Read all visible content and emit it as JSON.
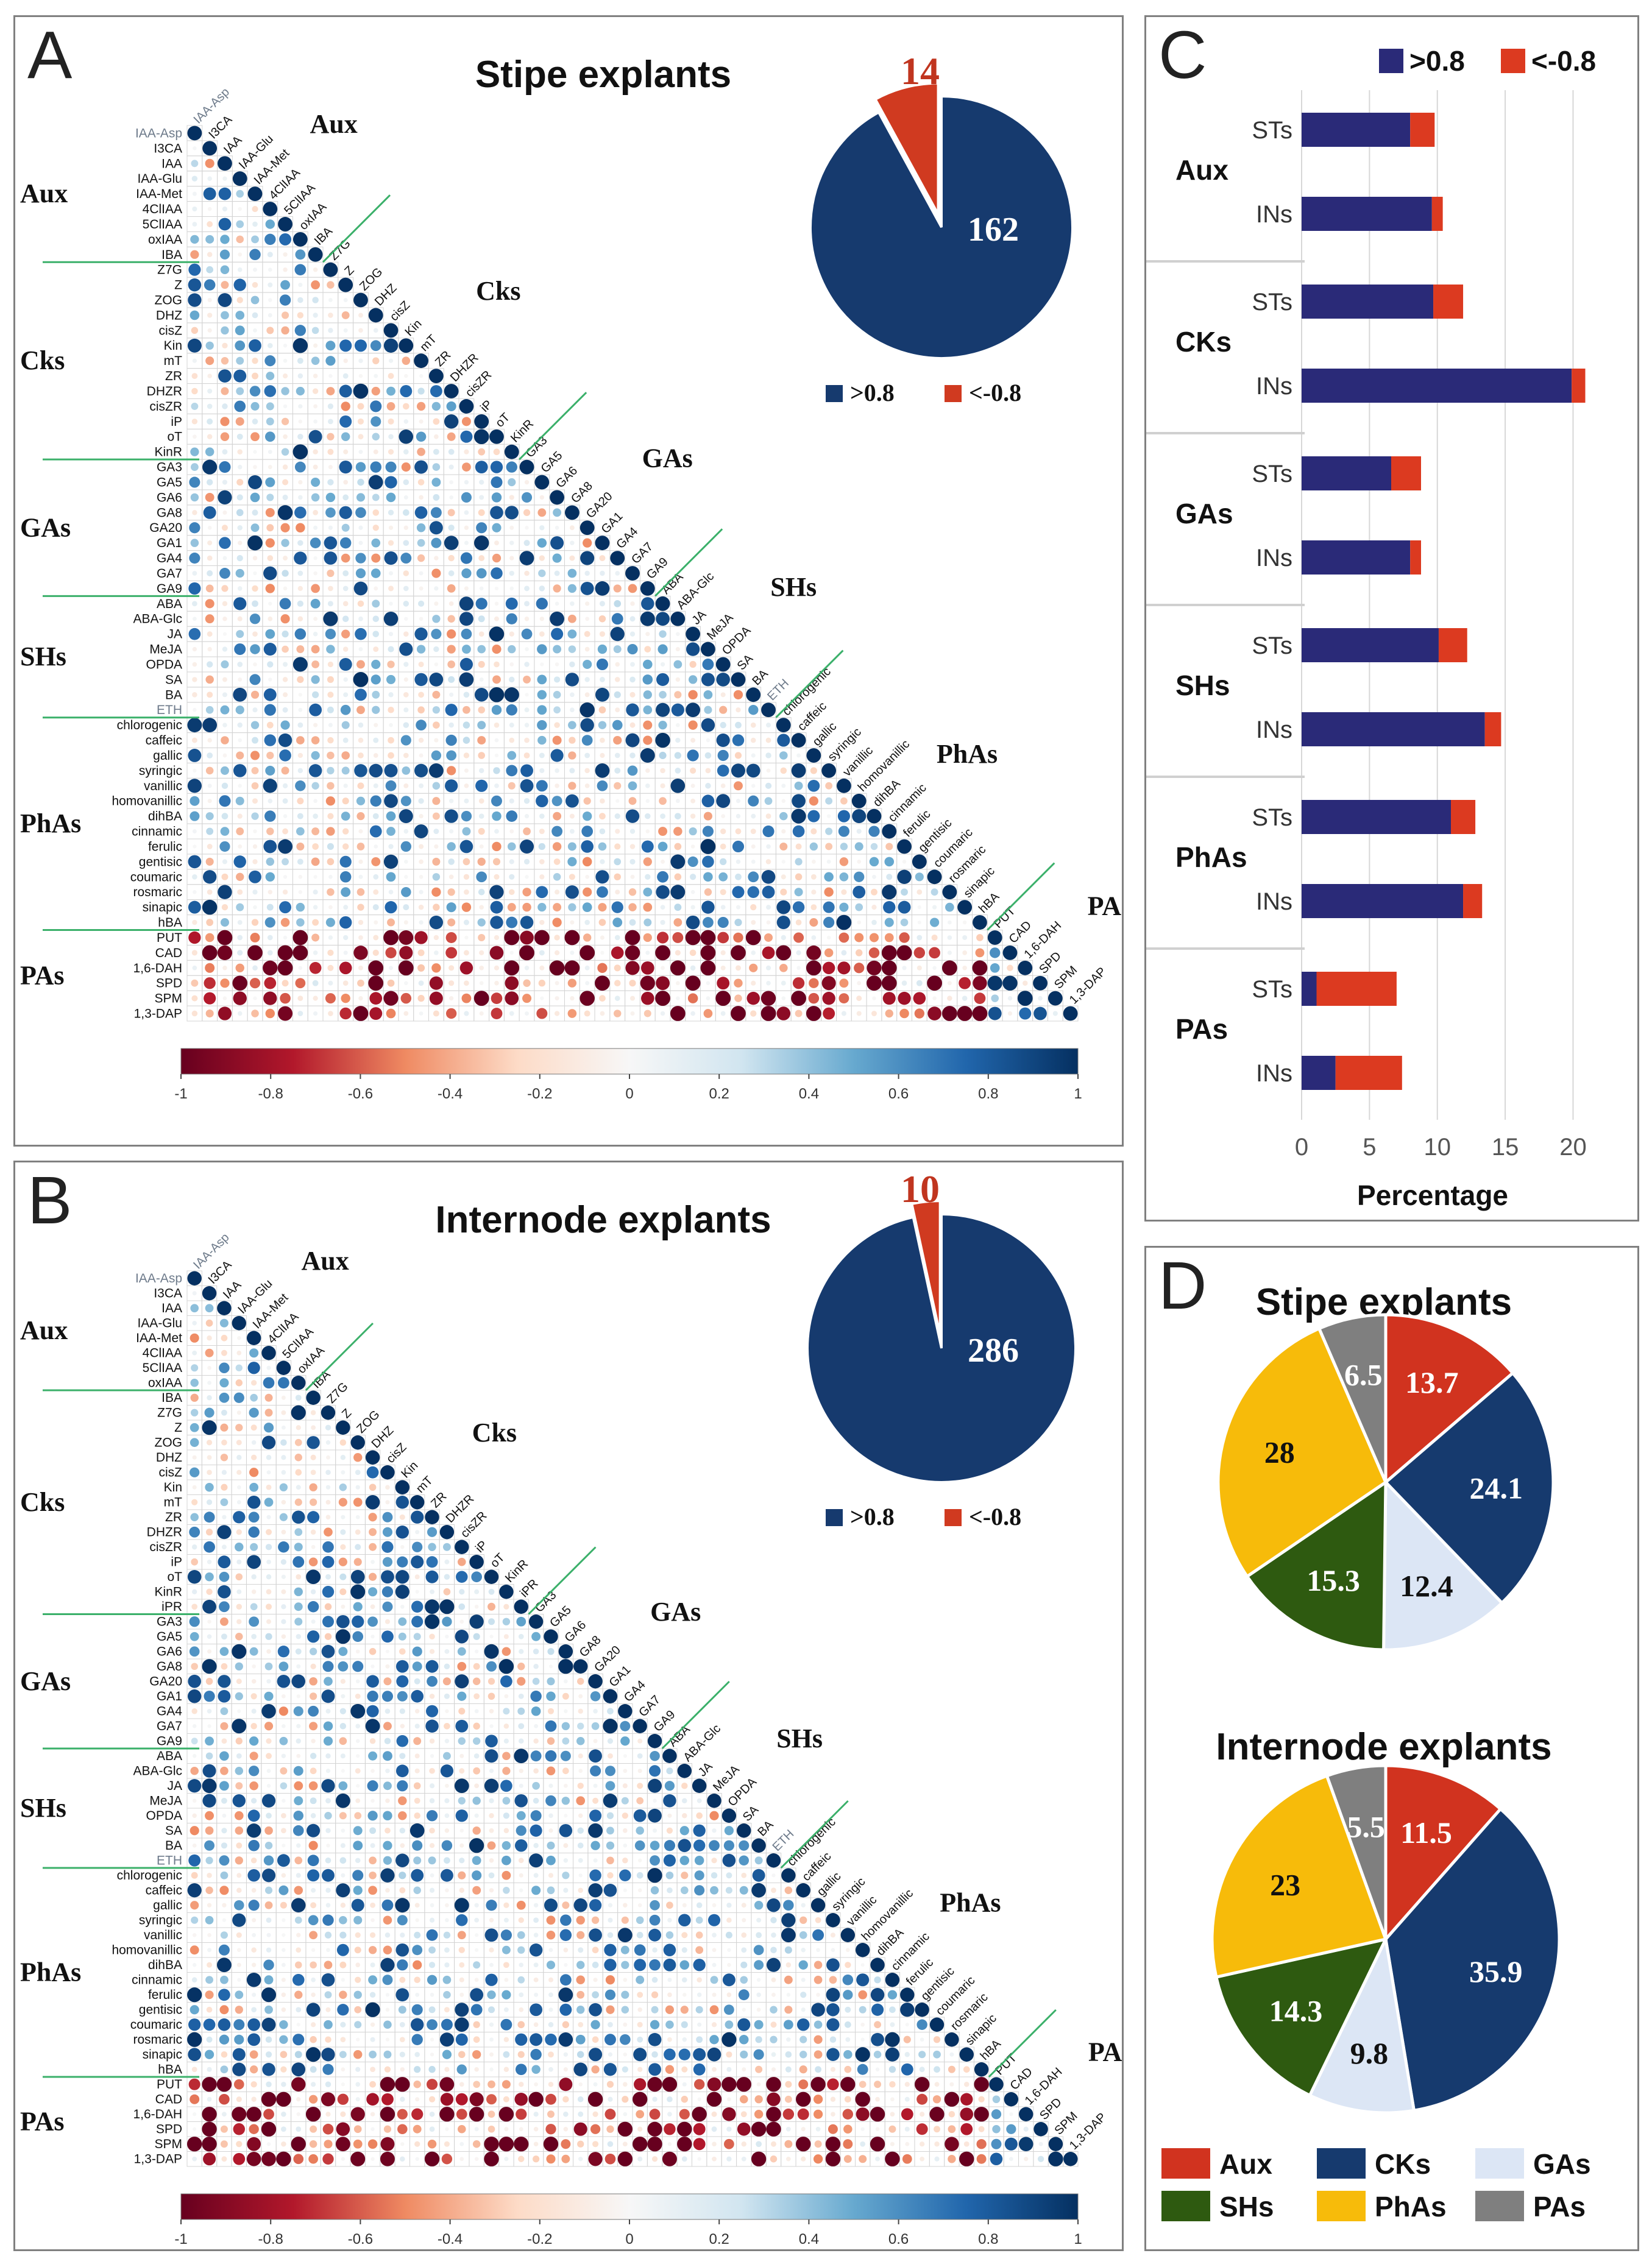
{
  "panels": {
    "A": {
      "letter": "A",
      "title": "Stipe explants",
      "labels": [
        "IAA-Asp",
        "I3CA",
        "IAA",
        "IAA-Glu",
        "IAA-Met",
        "4ClIAA",
        "5ClIAA",
        "oxIAA",
        "IBA",
        "Z7G",
        "Z",
        "ZOG",
        "DHZ",
        "cisZ",
        "Kin",
        "mT",
        "ZR",
        "DHZR",
        "cisZR",
        "iP",
        "oT",
        "KinR",
        "GA3",
        "GA5",
        "GA6",
        "GA8",
        "GA20",
        "GA1",
        "GA4",
        "GA7",
        "GA9",
        "ABA",
        "ABA-Glc",
        "JA",
        "MeJA",
        "OPDA",
        "SA",
        "BA",
        "ETH",
        "chlorogenic",
        "caffeic",
        "gallic",
        "syringic",
        "vanillic",
        "homovanillic",
        "dihBA",
        "cinnamic",
        "ferulic",
        "gentisic",
        "coumaric",
        "rosmaric",
        "sinapic",
        "hBA",
        "PUT",
        "CAD",
        "1,6-DAH",
        "SPD",
        "SPM",
        "1,3-DAP"
      ],
      "groups": [
        {
          "name": "Aux",
          "start": 0,
          "end": 8
        },
        {
          "name": "Cks",
          "start": 9,
          "end": 21
        },
        {
          "name": "GAs",
          "start": 22,
          "end": 30
        },
        {
          "name": "SHs",
          "start": 31,
          "end": 38
        },
        {
          "name": "PhAs",
          "start": 39,
          "end": 52
        },
        {
          "name": "PAs",
          "start": 53,
          "end": 58
        }
      ],
      "pie": {
        "positive_label": "162",
        "negative_label": "14",
        "positive": 162,
        "negative": 14
      },
      "legend": {
        "pos": ">0.8",
        "neg": "<-0.8"
      }
    },
    "B": {
      "letter": "B",
      "title": "Internode explants",
      "labels": [
        "IAA-Asp",
        "I3CA",
        "IAA",
        "IAA-Glu",
        "IAA-Met",
        "4ClIAA",
        "5ClIAA",
        "oxIAA",
        "IBA",
        "Z7G",
        "Z",
        "ZOG",
        "DHZ",
        "cisZ",
        "Kin",
        "mT",
        "ZR",
        "DHZR",
        "cisZR",
        "iP",
        "oT",
        "KinR",
        "iPR",
        "GA3",
        "GA5",
        "GA6",
        "GA8",
        "GA20",
        "GA1",
        "GA4",
        "GA7",
        "GA9",
        "ABA",
        "ABA-Glc",
        "JA",
        "MeJA",
        "OPDA",
        "SA",
        "BA",
        "ETH",
        "chlorogenic",
        "caffeic",
        "gallic",
        "syringic",
        "vanillic",
        "homovanillic",
        "dihBA",
        "cinnamic",
        "ferulic",
        "gentisic",
        "coumaric",
        "rosmaric",
        "sinapic",
        "hBA",
        "PUT",
        "CAD",
        "1,6-DAH",
        "SPD",
        "SPM",
        "1,3-DAP"
      ],
      "groups": [
        {
          "name": "Aux",
          "start": 0,
          "end": 7
        },
        {
          "name": "Cks",
          "start": 8,
          "end": 22
        },
        {
          "name": "GAs",
          "start": 23,
          "end": 31
        },
        {
          "name": "SHs",
          "start": 32,
          "end": 39
        },
        {
          "name": "PhAs",
          "start": 40,
          "end": 53
        },
        {
          "name": "PAs",
          "start": 54,
          "end": 59
        }
      ],
      "pie": {
        "positive_label": "286",
        "negative_label": "10",
        "positive": 286,
        "negative": 10
      },
      "legend": {
        "pos": ">0.8",
        "neg": "<-0.8"
      }
    },
    "C": {
      "letter": "C",
      "legend": {
        "pos": ">0.8",
        "neg": "<-0.8"
      }
    },
    "D": {
      "letter": "D",
      "legend_items": [
        {
          "key": "aux",
          "label": "Aux"
        },
        {
          "key": "cks",
          "label": "CKs"
        },
        {
          "key": "gas",
          "label": "GAs"
        },
        {
          "key": "shs",
          "label": "SHs"
        },
        {
          "key": "phas",
          "label": "PhAs"
        },
        {
          "key": "pas",
          "label": "PAs"
        }
      ]
    }
  },
  "colorbar": {
    "ticks": [
      "-1",
      "-0.8",
      "-0.6",
      "-0.4",
      "-0.2",
      "0",
      "0.2",
      "0.4",
      "0.6",
      "0.8",
      "1"
    ]
  },
  "colors": {
    "pos": "#163a6e",
    "neg": "#d03a20",
    "bar_pos": "#2a2a78",
    "bar_neg": "#dc3a20",
    "green_line": "#3bb06a",
    "aux": "#d1331f",
    "cks": "#163a6e",
    "gas": "#dce6f5",
    "shs": "#2e5a10",
    "phas": "#f7bb0a",
    "pas": "#7f7f7f"
  },
  "chart_data": [
    {
      "type": "heatmap",
      "panel": "A",
      "title": "Stipe explants",
      "description_scale": [
        -1,
        1
      ],
      "colorbar_ticks": [
        -1,
        -0.8,
        -0.6,
        -0.4,
        -0.2,
        0,
        0.2,
        0.4,
        0.6,
        0.8,
        1
      ]
    },
    {
      "type": "pie",
      "panel": "A",
      "categories": [
        ">0.8",
        "<-0.8"
      ],
      "values": [
        162,
        14
      ]
    },
    {
      "type": "heatmap",
      "panel": "B",
      "title": "Internode explants",
      "colorbar_ticks": [
        -1,
        -0.8,
        -0.6,
        -0.4,
        -0.2,
        0,
        0.2,
        0.4,
        0.6,
        0.8,
        1
      ]
    },
    {
      "type": "pie",
      "panel": "B",
      "categories": [
        ">0.8",
        "<-0.8"
      ],
      "values": [
        286,
        10
      ]
    },
    {
      "type": "bar",
      "panel": "C",
      "orientation": "horizontal",
      "stacked": true,
      "xlabel": "Percentage",
      "xlim": [
        0,
        22
      ],
      "xticks": [
        "0",
        "5",
        "10",
        "15",
        "20"
      ],
      "groups": [
        {
          "name": "Aux",
          "rows": [
            {
              "label": "STs",
              "pos": 8.0,
              "neg": 1.8
            },
            {
              "label": "INs",
              "pos": 9.6,
              "neg": 0.8
            }
          ]
        },
        {
          "name": "CKs",
          "rows": [
            {
              "label": "STs",
              "pos": 9.7,
              "neg": 2.2
            },
            {
              "label": "INs",
              "pos": 19.9,
              "neg": 1.0
            }
          ]
        },
        {
          "name": "GAs",
          "rows": [
            {
              "label": "STs",
              "pos": 6.6,
              "neg": 2.2
            },
            {
              "label": "INs",
              "pos": 8.0,
              "neg": 0.8
            }
          ]
        },
        {
          "name": "SHs",
          "rows": [
            {
              "label": "STs",
              "pos": 10.1,
              "neg": 2.1
            },
            {
              "label": "INs",
              "pos": 13.5,
              "neg": 1.2
            }
          ]
        },
        {
          "name": "PhAs",
          "rows": [
            {
              "label": "STs",
              "pos": 11.0,
              "neg": 1.8
            },
            {
              "label": "INs",
              "pos": 11.9,
              "neg": 1.4
            }
          ]
        },
        {
          "name": "PAs",
          "rows": [
            {
              "label": "STs",
              "pos": 1.1,
              "neg": 5.9
            },
            {
              "label": "INs",
              "pos": 2.5,
              "neg": 4.9
            }
          ]
        }
      ]
    },
    {
      "type": "pie",
      "panel": "D",
      "title": "Stipe explants",
      "categories": [
        "Aux",
        "CKs",
        "GAs",
        "SHs",
        "PhAs",
        "PAs"
      ],
      "values": [
        13.7,
        24.1,
        12.4,
        15.3,
        28,
        6.5
      ],
      "labels": [
        "13.7",
        "24.1",
        "12.4",
        "15.3",
        "28",
        "6.5"
      ]
    },
    {
      "type": "pie",
      "panel": "D",
      "title": "Internode explants",
      "categories": [
        "Aux",
        "CKs",
        "GAs",
        "SHs",
        "PhAs",
        "PAs"
      ],
      "values": [
        11.5,
        35.9,
        9.8,
        14.3,
        23,
        5.5
      ],
      "labels": [
        "11.5",
        "35.9",
        "9.8",
        "14.3",
        "23",
        "5.5"
      ]
    }
  ]
}
